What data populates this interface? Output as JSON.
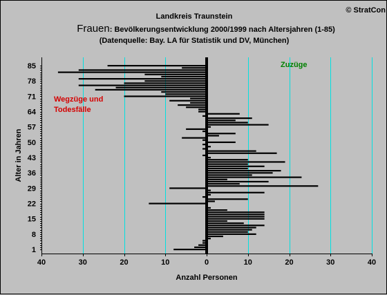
{
  "chart_data": {
    "type": "bar",
    "orientation": "horizontal",
    "title_line1": "Landkreis Traunstein",
    "title_prefix": "Frauen",
    "title_line2": ": Bevölkerungsentwicklung 2000/1999  nach Altersjahren (1-85)",
    "subtitle": "(Datenquelle: Bay. LA für Statistik und DV, München)",
    "copyright": "© StratCon",
    "xlabel": "Anzahl Personen",
    "ylabel": "Alter in Jahren",
    "xlim": [
      -40,
      40
    ],
    "ylim": [
      1,
      85
    ],
    "x_ticks": [
      {
        "value": -40,
        "label": "40"
      },
      {
        "value": -30,
        "label": "30"
      },
      {
        "value": -20,
        "label": "20"
      },
      {
        "value": -10,
        "label": "10"
      },
      {
        "value": 0,
        "label": "0"
      },
      {
        "value": 10,
        "label": "10"
      },
      {
        "value": 20,
        "label": "20"
      },
      {
        "value": 30,
        "label": "30"
      },
      {
        "value": 40,
        "label": "40"
      }
    ],
    "y_ticks": [
      1,
      8,
      15,
      22,
      29,
      36,
      43,
      50,
      57,
      64,
      71,
      78,
      85
    ],
    "annotation_left": [
      "Wegzüge und",
      "Todesfälle"
    ],
    "annotation_right": "Zuzüge",
    "grid": "vertical",
    "ages": [
      1,
      2,
      3,
      4,
      5,
      6,
      7,
      8,
      9,
      10,
      11,
      12,
      13,
      14,
      15,
      16,
      17,
      18,
      19,
      20,
      21,
      22,
      23,
      24,
      25,
      26,
      27,
      28,
      29,
      30,
      31,
      32,
      33,
      34,
      35,
      36,
      37,
      38,
      39,
      40,
      41,
      42,
      43,
      44,
      45,
      46,
      47,
      48,
      49,
      50,
      51,
      52,
      53,
      54,
      55,
      56,
      57,
      58,
      59,
      60,
      61,
      62,
      63,
      64,
      65,
      66,
      67,
      68,
      69,
      70,
      71,
      72,
      73,
      74,
      75,
      76,
      77,
      78,
      79,
      80,
      81,
      82,
      83,
      84,
      85
    ],
    "values": [
      -8,
      -3,
      -2,
      -1,
      -1,
      1,
      4,
      12,
      10,
      11,
      12,
      14,
      9,
      5,
      14,
      14,
      14,
      14,
      5,
      1,
      0,
      -14,
      2,
      10,
      -1,
      1,
      14,
      1,
      -9,
      27,
      8,
      15,
      5,
      23,
      11,
      16,
      18,
      10,
      14,
      10,
      19,
      10,
      1,
      -1,
      17,
      12,
      -1,
      1,
      -1,
      7,
      -1,
      -6,
      3,
      7,
      -1,
      -5,
      1,
      15,
      10,
      7,
      11,
      -1,
      8,
      -2,
      -2,
      -5,
      -7,
      -4,
      -9,
      -4,
      -20,
      -10,
      -11,
      -27,
      -22,
      -31,
      -20,
      -15,
      -31,
      -11,
      -15,
      -36,
      -31,
      -6,
      -24
    ],
    "colors": {
      "background": "#c0c0c0",
      "bars": "#000000",
      "grid": "#00e0e0",
      "annotation_left": "#d40000",
      "annotation_right": "#008000"
    }
  }
}
